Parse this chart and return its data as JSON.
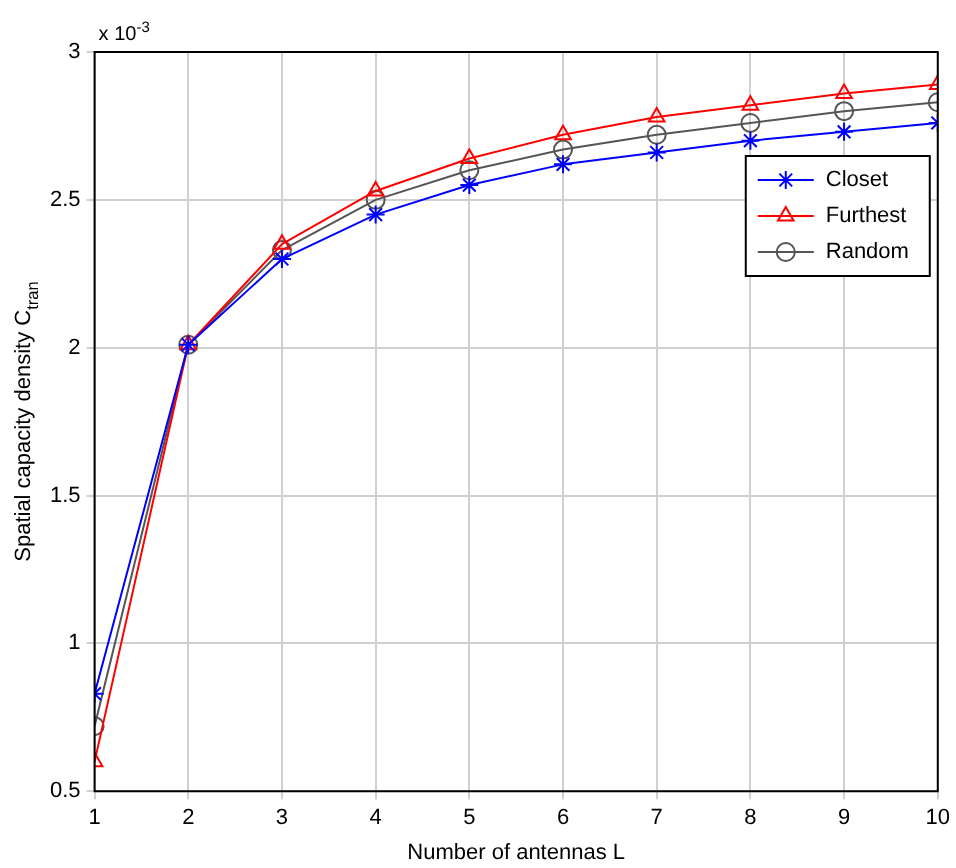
{
  "chart_data": {
    "type": "line",
    "xlabel": "Number of antennas L",
    "ylabel": "Spatial capacity density C$_{tran}$",
    "annotations": [
      "x 10$^{-3}$"
    ],
    "x": [
      1,
      2,
      3,
      4,
      5,
      6,
      7,
      8,
      9,
      10
    ],
    "series": [
      {
        "name": "Closet",
        "color": "#0000ff",
        "marker": "cross",
        "values": [
          0.83,
          2.01,
          2.3,
          2.45,
          2.55,
          2.62,
          2.66,
          2.7,
          2.73,
          2.76
        ]
      },
      {
        "name": "Furthest",
        "color": "#ff0000",
        "marker": "triangle",
        "values": [
          0.6,
          2.01,
          2.35,
          2.53,
          2.64,
          2.72,
          2.78,
          2.82,
          2.86,
          2.89
        ]
      },
      {
        "name": "Random",
        "color": "#555555",
        "marker": "circle",
        "values": [
          0.72,
          2.01,
          2.33,
          2.5,
          2.6,
          2.67,
          2.72,
          2.76,
          2.8,
          2.83
        ]
      }
    ],
    "xlim": [
      1,
      10
    ],
    "xticks": [
      1,
      2,
      3,
      4,
      5,
      6,
      7,
      8,
      9,
      10
    ],
    "ylim": [
      0.5,
      3
    ],
    "yticks": [
      0.5,
      1,
      1.5,
      2,
      2.5,
      3
    ],
    "grid": true,
    "legend": "top right",
    "line_style": "solid"
  }
}
